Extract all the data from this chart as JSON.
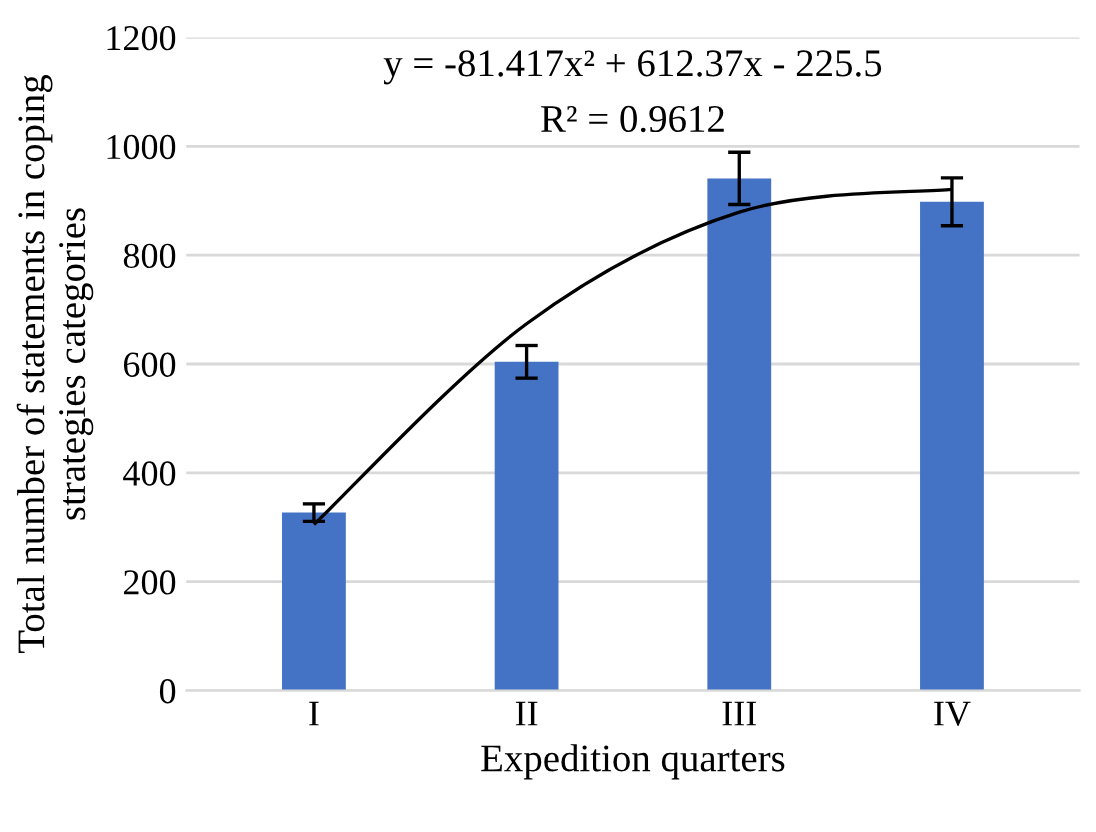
{
  "chart_data": {
    "type": "bar",
    "xlabel": "Expedition quarters",
    "ylabel": "Total number of statements in coping strategies categories",
    "categories": [
      "I",
      "II",
      "III",
      "IV"
    ],
    "series": [
      {
        "color": "#4472c4",
        "values": [
          327,
          604,
          941,
          898
        ],
        "errors": [
          16,
          30,
          48,
          44
        ]
      },
      {
        "type": "line",
        "color": "#000000",
        "values": [
          305,
          674,
          879,
          921
        ]
      }
    ],
    "annotations": [
      "y = -81.417x² + 612.37x - 225.5",
      "R² = 0.9612"
    ],
    "ylim": [
      0,
      1200
    ],
    "yticks": [
      0,
      200,
      400,
      600,
      800,
      1000,
      1200
    ],
    "grid": "y"
  }
}
